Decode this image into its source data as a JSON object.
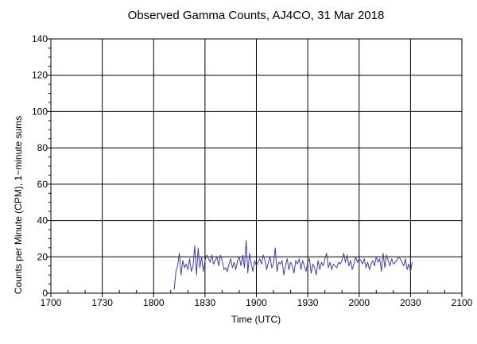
{
  "chart_data": {
    "type": "line",
    "title": "Observed Gamma Counts, AJ4CO, 31 Mar 2018",
    "xlabel": "Time (UTC)",
    "ylabel": "Counts per Minute (CPM), 1−minute sums",
    "x_tick_labels": [
      "1700",
      "1730",
      "1800",
      "1830",
      "1900",
      "1930",
      "2000",
      "2030",
      "2100"
    ],
    "x_unit": "minutes since 1700 UTC",
    "xlim": [
      0,
      240
    ],
    "ylim": [
      0,
      140
    ],
    "y_ticks": [
      0,
      20,
      40,
      60,
      80,
      100,
      120,
      140
    ],
    "grid": true,
    "colors": {
      "series": "#4040a0",
      "grid": "#000000"
    },
    "series": [
      {
        "values": [
          [
            72,
            2
          ],
          [
            73,
            12
          ],
          [
            74,
            15
          ],
          [
            75,
            22
          ],
          [
            76,
            10
          ],
          [
            77,
            18
          ],
          [
            78,
            14
          ],
          [
            79,
            16
          ],
          [
            80,
            13
          ],
          [
            81,
            19
          ],
          [
            82,
            12
          ],
          [
            83,
            15
          ],
          [
            84,
            26
          ],
          [
            85,
            10
          ],
          [
            86,
            25
          ],
          [
            87,
            14
          ],
          [
            88,
            20
          ],
          [
            89,
            12
          ],
          [
            90,
            18
          ],
          [
            91,
            21
          ],
          [
            92,
            19
          ],
          [
            93,
            17
          ],
          [
            94,
            21
          ],
          [
            95,
            16
          ],
          [
            96,
            18
          ],
          [
            97,
            20
          ],
          [
            98,
            15
          ],
          [
            99,
            21
          ],
          [
            100,
            18
          ],
          [
            101,
            13
          ],
          [
            102,
            14
          ],
          [
            103,
            12
          ],
          [
            104,
            16
          ],
          [
            105,
            19
          ],
          [
            106,
            14
          ],
          [
            107,
            17
          ],
          [
            108,
            13
          ],
          [
            109,
            18
          ],
          [
            110,
            20
          ],
          [
            111,
            15
          ],
          [
            112,
            21
          ],
          [
            113,
            14
          ],
          [
            114,
            29
          ],
          [
            115,
            11
          ],
          [
            116,
            22
          ],
          [
            117,
            16
          ],
          [
            118,
            12
          ],
          [
            119,
            18
          ],
          [
            120,
            15
          ],
          [
            121,
            17
          ],
          [
            122,
            19
          ],
          [
            123,
            16
          ],
          [
            124,
            21
          ],
          [
            125,
            18
          ],
          [
            126,
            13
          ],
          [
            127,
            17
          ],
          [
            128,
            20
          ],
          [
            129,
            14
          ],
          [
            130,
            16
          ],
          [
            131,
            25
          ],
          [
            132,
            12
          ],
          [
            133,
            17
          ],
          [
            134,
            16
          ],
          [
            135,
            18
          ],
          [
            136,
            10
          ],
          [
            137,
            15
          ],
          [
            138,
            19
          ],
          [
            139,
            13
          ],
          [
            140,
            17
          ],
          [
            141,
            15
          ],
          [
            142,
            11
          ],
          [
            143,
            18
          ],
          [
            144,
            16
          ],
          [
            145,
            19
          ],
          [
            146,
            13
          ],
          [
            147,
            18
          ],
          [
            148,
            15
          ],
          [
            149,
            12
          ],
          [
            150,
            17
          ],
          [
            151,
            19
          ],
          [
            152,
            11
          ],
          [
            153,
            16
          ],
          [
            154,
            14
          ],
          [
            155,
            10
          ],
          [
            156,
            18
          ],
          [
            157,
            13
          ],
          [
            158,
            17
          ],
          [
            159,
            15
          ],
          [
            160,
            19
          ],
          [
            161,
            22
          ],
          [
            162,
            14
          ],
          [
            163,
            17
          ],
          [
            164,
            13
          ],
          [
            165,
            16
          ],
          [
            166,
            15
          ],
          [
            167,
            14
          ],
          [
            168,
            17
          ],
          [
            169,
            16
          ],
          [
            170,
            18
          ],
          [
            171,
            22
          ],
          [
            172,
            17
          ],
          [
            173,
            21
          ],
          [
            174,
            15
          ],
          [
            175,
            18
          ],
          [
            176,
            13
          ],
          [
            177,
            16
          ],
          [
            178,
            20
          ],
          [
            179,
            17
          ],
          [
            180,
            19
          ],
          [
            181,
            18
          ],
          [
            182,
            16
          ],
          [
            183,
            19
          ],
          [
            184,
            14
          ],
          [
            185,
            17
          ],
          [
            186,
            13
          ],
          [
            187,
            16
          ],
          [
            188,
            18
          ],
          [
            189,
            15
          ],
          [
            190,
            20
          ],
          [
            191,
            17
          ],
          [
            192,
            19
          ],
          [
            193,
            12
          ],
          [
            194,
            22
          ],
          [
            195,
            14
          ],
          [
            196,
            21
          ],
          [
            197,
            18
          ],
          [
            198,
            15
          ],
          [
            199,
            19
          ],
          [
            200,
            16
          ],
          [
            201,
            17
          ],
          [
            202,
            18
          ],
          [
            203,
            20
          ],
          [
            204,
            19
          ],
          [
            205,
            17
          ],
          [
            206,
            15
          ],
          [
            207,
            19
          ],
          [
            208,
            13
          ],
          [
            209,
            16
          ],
          [
            210,
            12
          ],
          [
            211,
            17
          ]
        ]
      }
    ]
  }
}
